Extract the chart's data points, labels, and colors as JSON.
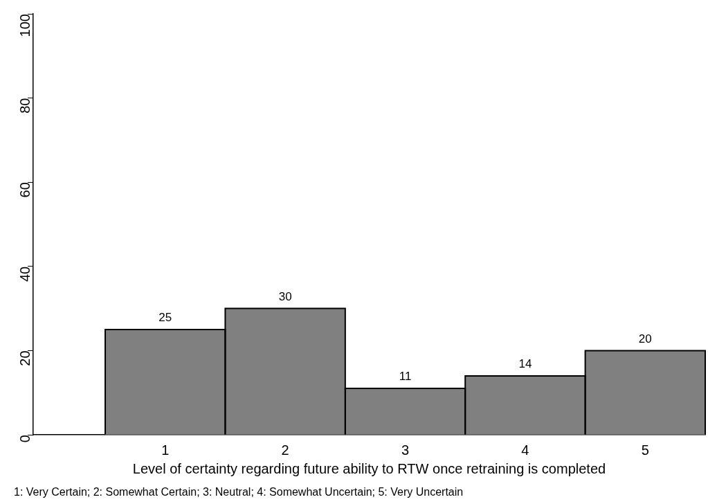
{
  "chart_data": {
    "type": "histogram",
    "xlabel": "Level of certainty regarding future ability to RTW once retraining is completed",
    "annotations": [
      "1: Very Certain; 2: Somewhat Certain; 3: Neutral; 4: Somewhat Uncertain; 5: Very Uncertain"
    ],
    "bins": [
      0.5,
      1.5,
      2.5,
      3.5,
      4.5,
      5.5
    ],
    "values": [
      25,
      30,
      11,
      14,
      20
    ],
    "color": "#808080",
    "xlim": [
      -0.1,
      5.5
    ],
    "xticks": [
      1,
      2,
      3,
      4,
      5
    ],
    "ylim": [
      0,
      100
    ],
    "yticks": [
      0,
      20,
      40,
      60,
      80,
      100
    ],
    "grid": false,
    "data_labels": true
  }
}
